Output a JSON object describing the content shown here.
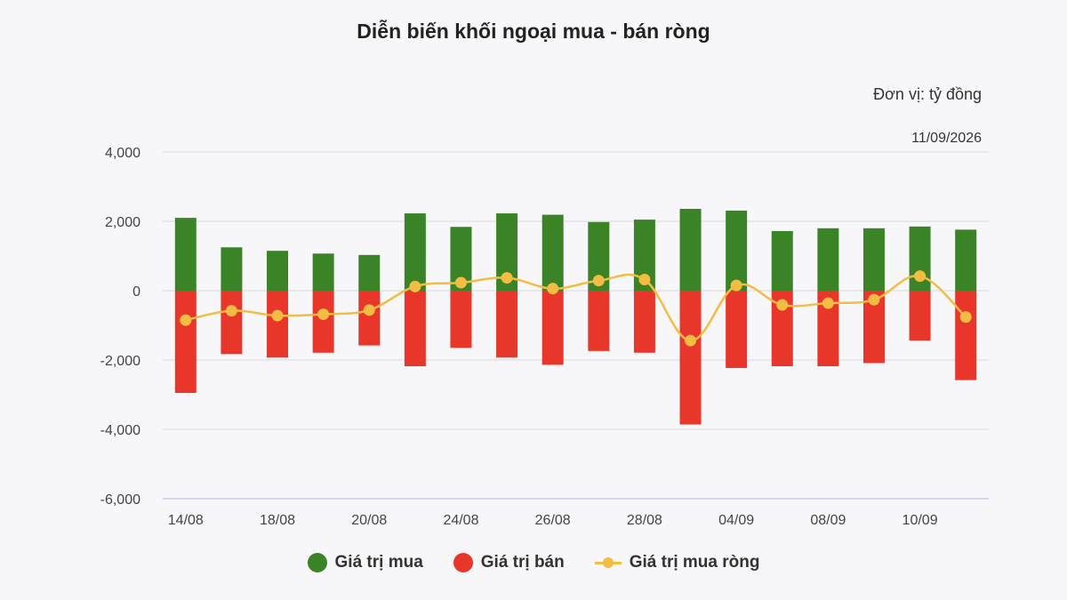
{
  "header": {
    "title": "Diễn biến khối ngoại mua - bán ròng",
    "unit": "Đơn vị: tỷ đồng",
    "date": "11/09/2026"
  },
  "colors": {
    "buy": "#3a8427",
    "sell": "#e8372a",
    "net": "#f2bd42",
    "grid": "#d9d9e0",
    "axis": "#c9cbe6"
  },
  "legend": [
    {
      "label": "Giá trị mua",
      "marker": "circle",
      "color": "#3a8427"
    },
    {
      "label": "Giá trị bán",
      "marker": "circle",
      "color": "#e8372a"
    },
    {
      "label": "Giá trị mua ròng",
      "marker": "line-point",
      "color": "#f2bd42"
    }
  ],
  "chart_data": {
    "type": "bar",
    "categories": [
      "14/08",
      "",
      "18/08",
      "",
      "20/08",
      "",
      "24/08",
      "",
      "26/08",
      "",
      "28/08",
      "",
      "04/09",
      "",
      "08/09",
      "",
      "10/09",
      ""
    ],
    "yticks": [
      4000,
      2000,
      0,
      -2000,
      -4000,
      -6000
    ],
    "ytick_labels": [
      "4,000",
      "2,000",
      "0",
      "-2,000",
      "-4,000",
      "-6,000"
    ],
    "ylim": [
      -6000,
      4000
    ],
    "grid": true,
    "legend_position": "bottom",
    "series": [
      {
        "name": "Giá trị mua",
        "type": "bar",
        "values": [
          2100,
          1250,
          1150,
          1070,
          1030,
          2230,
          1840,
          2230,
          2190,
          1980,
          2050,
          2360,
          2310,
          1720,
          1800,
          1800,
          1850,
          1760
        ]
      },
      {
        "name": "Giá trị bán",
        "type": "bar",
        "values": [
          -2950,
          -1830,
          -1930,
          -1790,
          -1580,
          -2180,
          -1650,
          -1930,
          -2140,
          -1740,
          -1790,
          -3860,
          -2230,
          -2180,
          -2180,
          -2090,
          -1440,
          -2580
        ]
      },
      {
        "name": "Giá trị mua ròng",
        "type": "line",
        "values": [
          -850,
          -580,
          -720,
          -680,
          -560,
          120,
          230,
          370,
          60,
          290,
          320,
          -1440,
          150,
          -410,
          -360,
          -260,
          420,
          -760
        ]
      }
    ]
  }
}
